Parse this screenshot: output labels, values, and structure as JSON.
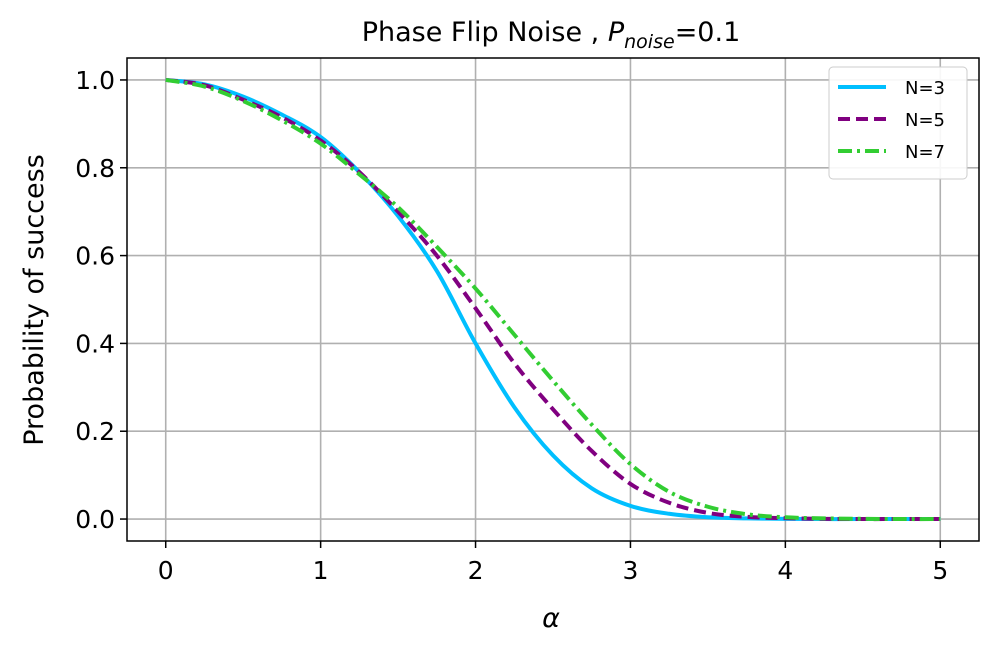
{
  "chart_data": {
    "type": "line",
    "title": {
      "prefix": "Phase Flip Noise , ",
      "symbol": "P",
      "subscript": "noise",
      "suffix": "=0.1"
    },
    "xlabel": "α",
    "ylabel": "Probability of success",
    "xlim": [
      -0.25,
      5.25
    ],
    "ylim": [
      -0.05,
      1.05
    ],
    "xticks": [
      0,
      1,
      2,
      3,
      4,
      5
    ],
    "xtick_labels": [
      "0",
      "1",
      "2",
      "3",
      "4",
      "5"
    ],
    "yticks": [
      0.0,
      0.2,
      0.4,
      0.6,
      0.8,
      1.0
    ],
    "ytick_labels": [
      "0.0",
      "0.2",
      "0.4",
      "0.6",
      "0.8",
      "1.0"
    ],
    "grid": true,
    "legend_position": "top-right",
    "x": [
      0,
      0.25,
      0.5,
      0.75,
      1.0,
      1.25,
      1.5,
      1.75,
      2.0,
      2.25,
      2.5,
      2.75,
      3.0,
      3.25,
      3.5,
      3.75,
      4.0,
      4.25,
      4.5,
      4.75,
      5.0
    ],
    "series": [
      {
        "name": "N=3",
        "color": "#00bfff",
        "style": "solid",
        "values": [
          1.0,
          0.99,
          0.962,
          0.921,
          0.87,
          0.79,
          0.69,
          0.565,
          0.4,
          0.255,
          0.145,
          0.07,
          0.03,
          0.012,
          0.004,
          0.0015,
          0.0005,
          0.0,
          0.0,
          0.0,
          0.0
        ]
      },
      {
        "name": "N=5",
        "color": "#800080",
        "style": "dashed",
        "values": [
          1.0,
          0.988,
          0.955,
          0.915,
          0.862,
          0.79,
          0.7,
          0.6,
          0.48,
          0.355,
          0.25,
          0.155,
          0.08,
          0.037,
          0.014,
          0.005,
          0.002,
          0.0005,
          0.0,
          0.0,
          0.0
        ]
      },
      {
        "name": "N=7",
        "color": "#32cd32",
        "style": "dashdot",
        "values": [
          1.0,
          0.985,
          0.952,
          0.908,
          0.855,
          0.785,
          0.71,
          0.62,
          0.525,
          0.42,
          0.315,
          0.215,
          0.125,
          0.062,
          0.028,
          0.011,
          0.004,
          0.0015,
          0.0005,
          0.0,
          0.0
        ]
      }
    ]
  }
}
